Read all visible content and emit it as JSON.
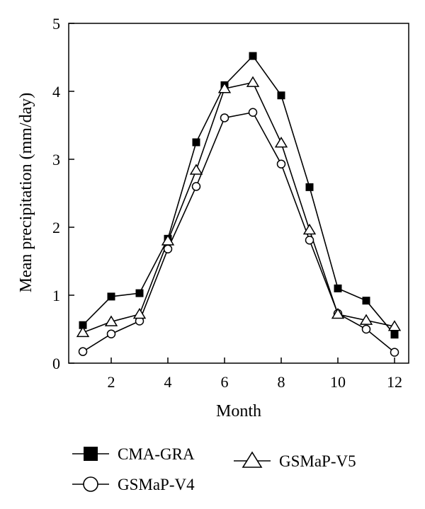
{
  "chart_data": {
    "type": "line",
    "title": "",
    "xlabel": "Month",
    "ylabel": "Mean precipitation (mm/day)",
    "xlim": [
      0.5,
      12.5
    ],
    "ylim": [
      0,
      5
    ],
    "xticks": [
      2,
      4,
      6,
      8,
      10,
      12
    ],
    "yticks": [
      0,
      1,
      2,
      3,
      4,
      5
    ],
    "grid": false,
    "legend_position": "bottom",
    "x": [
      1,
      2,
      3,
      4,
      5,
      6,
      7,
      8,
      9,
      10,
      11,
      12
    ],
    "series": [
      {
        "name": "CMA-GRA",
        "marker": "filled-square",
        "values": [
          0.56,
          0.98,
          1.03,
          1.83,
          3.25,
          4.09,
          4.52,
          3.94,
          2.59,
          1.1,
          0.92,
          0.42
        ]
      },
      {
        "name": "GSMaP-V4",
        "marker": "open-circle",
        "values": [
          0.17,
          0.43,
          0.62,
          1.68,
          2.6,
          3.61,
          3.69,
          2.93,
          1.81,
          0.73,
          0.5,
          0.16
        ]
      },
      {
        "name": "GSMaP-V5",
        "marker": "open-triangle",
        "values": [
          0.45,
          0.61,
          0.72,
          1.8,
          2.84,
          4.04,
          4.13,
          3.24,
          1.96,
          0.72,
          0.63,
          0.54
        ]
      }
    ]
  }
}
